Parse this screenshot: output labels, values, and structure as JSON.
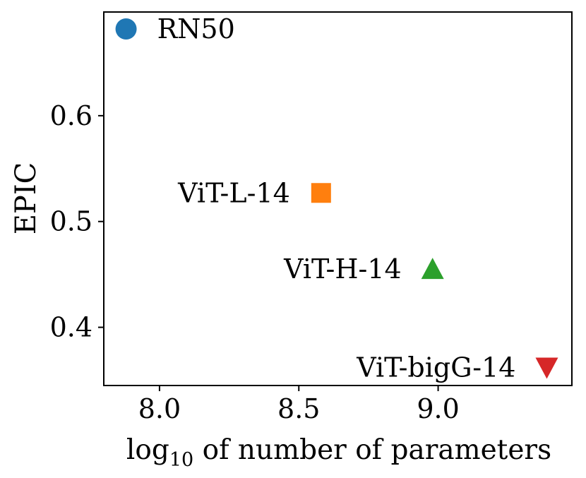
{
  "chart_data": {
    "type": "scatter",
    "title": "",
    "xlabel": {
      "prefix": "log",
      "subscript": "10",
      "suffix": " of number of parameters"
    },
    "ylabel": "EPIC",
    "xlim": [
      7.8,
      9.48
    ],
    "ylim": [
      0.345,
      0.698
    ],
    "xticks": [
      8.0,
      8.5,
      9.0
    ],
    "yticks": [
      0.4,
      0.5,
      0.6
    ],
    "grid": false,
    "legend": "none",
    "points": [
      {
        "label": "RN50",
        "x": 7.88,
        "y": 0.682,
        "marker": "circle",
        "color": "#1f77b4",
        "label_side": "right"
      },
      {
        "label": "ViT-L-14",
        "x": 8.58,
        "y": 0.527,
        "marker": "square",
        "color": "#ff7f0e",
        "label_side": "left"
      },
      {
        "label": "ViT-H-14",
        "x": 8.98,
        "y": 0.455,
        "marker": "triangle-up",
        "color": "#2ca02c",
        "label_side": "left"
      },
      {
        "label": "ViT-bigG-14",
        "x": 9.39,
        "y": 0.362,
        "marker": "triangle-down",
        "color": "#d62728",
        "label_side": "left"
      }
    ]
  }
}
